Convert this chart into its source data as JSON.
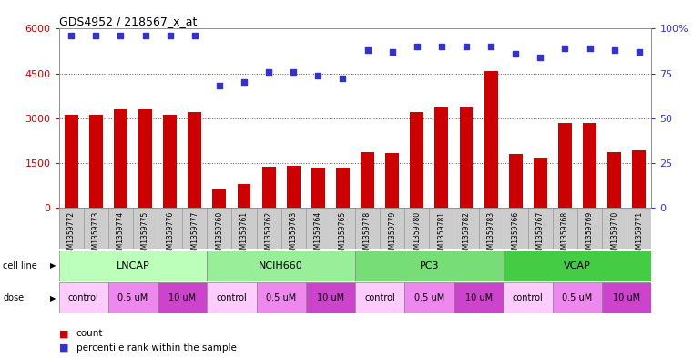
{
  "title": "GDS4952 / 218567_x_at",
  "samples": [
    "GSM1359772",
    "GSM1359773",
    "GSM1359774",
    "GSM1359775",
    "GSM1359776",
    "GSM1359777",
    "GSM1359760",
    "GSM1359761",
    "GSM1359762",
    "GSM1359763",
    "GSM1359764",
    "GSM1359765",
    "GSM1359778",
    "GSM1359779",
    "GSM1359780",
    "GSM1359781",
    "GSM1359782",
    "GSM1359783",
    "GSM1359766",
    "GSM1359767",
    "GSM1359768",
    "GSM1359769",
    "GSM1359770",
    "GSM1359771"
  ],
  "counts": [
    3100,
    3100,
    3300,
    3300,
    3100,
    3200,
    620,
    790,
    1370,
    1400,
    1340,
    1340,
    1860,
    1820,
    3200,
    3350,
    3350,
    4580,
    1800,
    1680,
    2850,
    2850,
    1850,
    1920
  ],
  "percentiles": [
    96,
    96,
    96,
    96,
    96,
    96,
    68,
    70,
    76,
    76,
    74,
    72,
    88,
    87,
    90,
    90,
    90,
    90,
    86,
    84,
    89,
    89,
    88,
    87
  ],
  "bar_color": "#cc0000",
  "dot_color": "#3333cc",
  "cell_lines": [
    {
      "name": "LNCAP",
      "start": 0,
      "end": 6,
      "color": "#bbffbb"
    },
    {
      "name": "NCIH660",
      "start": 6,
      "end": 12,
      "color": "#99ee99"
    },
    {
      "name": "PC3",
      "start": 12,
      "end": 18,
      "color": "#77dd77"
    },
    {
      "name": "VCAP",
      "start": 18,
      "end": 24,
      "color": "#44cc44"
    }
  ],
  "doses": [
    {
      "label": "control",
      "start": 0,
      "end": 2,
      "color": "#ffccff"
    },
    {
      "label": "0.5 uM",
      "start": 2,
      "end": 4,
      "color": "#ee88ee"
    },
    {
      "label": "10 uM",
      "start": 4,
      "end": 6,
      "color": "#cc44cc"
    },
    {
      "label": "control",
      "start": 6,
      "end": 8,
      "color": "#ffccff"
    },
    {
      "label": "0.5 uM",
      "start": 8,
      "end": 10,
      "color": "#ee88ee"
    },
    {
      "label": "10 uM",
      "start": 10,
      "end": 12,
      "color": "#cc44cc"
    },
    {
      "label": "control",
      "start": 12,
      "end": 14,
      "color": "#ffccff"
    },
    {
      "label": "0.5 uM",
      "start": 14,
      "end": 16,
      "color": "#ee88ee"
    },
    {
      "label": "10 uM",
      "start": 16,
      "end": 18,
      "color": "#cc44cc"
    },
    {
      "label": "control",
      "start": 18,
      "end": 20,
      "color": "#ffccff"
    },
    {
      "label": "0.5 uM",
      "start": 20,
      "end": 22,
      "color": "#ee88ee"
    },
    {
      "label": "10 uM",
      "start": 22,
      "end": 24,
      "color": "#cc44cc"
    }
  ],
  "ylim_left": [
    0,
    6000
  ],
  "ylim_right": [
    0,
    100
  ],
  "yticks_left": [
    0,
    1500,
    3000,
    4500,
    6000
  ],
  "yticks_right": [
    0,
    25,
    50,
    75,
    100
  ],
  "ylabel_left_color": "#cc0000",
  "ylabel_right_color": "#3333cc",
  "grid_vals": [
    1500,
    3000,
    4500
  ],
  "grid_color": "#555555",
  "bg_color": "#ffffff",
  "axes_bg": "#ffffff",
  "xticklabel_bg": "#cccccc"
}
